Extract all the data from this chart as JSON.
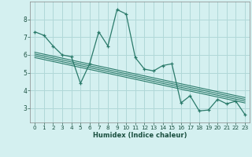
{
  "xlabel": "Humidex (Indice chaleur)",
  "bg_color": "#d4f0f0",
  "grid_color": "#b0d8d8",
  "line_color": "#2a7a6a",
  "xlim": [
    -0.5,
    23.5
  ],
  "ylim": [
    2.2,
    9.0
  ],
  "xticks": [
    0,
    1,
    2,
    3,
    4,
    5,
    6,
    7,
    8,
    9,
    10,
    11,
    12,
    13,
    14,
    15,
    16,
    17,
    18,
    19,
    20,
    21,
    22,
    23
  ],
  "yticks": [
    3,
    4,
    5,
    6,
    7,
    8
  ],
  "data_x": [
    0,
    1,
    2,
    3,
    4,
    5,
    6,
    7,
    8,
    9,
    10,
    11,
    12,
    13,
    14,
    15,
    16,
    17,
    18,
    19,
    20,
    21,
    22,
    23
  ],
  "data_y": [
    7.3,
    7.1,
    6.5,
    6.0,
    5.9,
    4.4,
    5.5,
    7.3,
    6.5,
    8.55,
    8.3,
    5.85,
    5.2,
    5.1,
    5.4,
    5.5,
    3.3,
    3.7,
    2.85,
    2.9,
    3.5,
    3.25,
    3.4,
    2.65
  ],
  "reg_lines": [
    [
      6.15,
      3.6
    ],
    [
      6.05,
      3.5
    ],
    [
      5.95,
      3.4
    ],
    [
      5.85,
      3.3
    ]
  ]
}
